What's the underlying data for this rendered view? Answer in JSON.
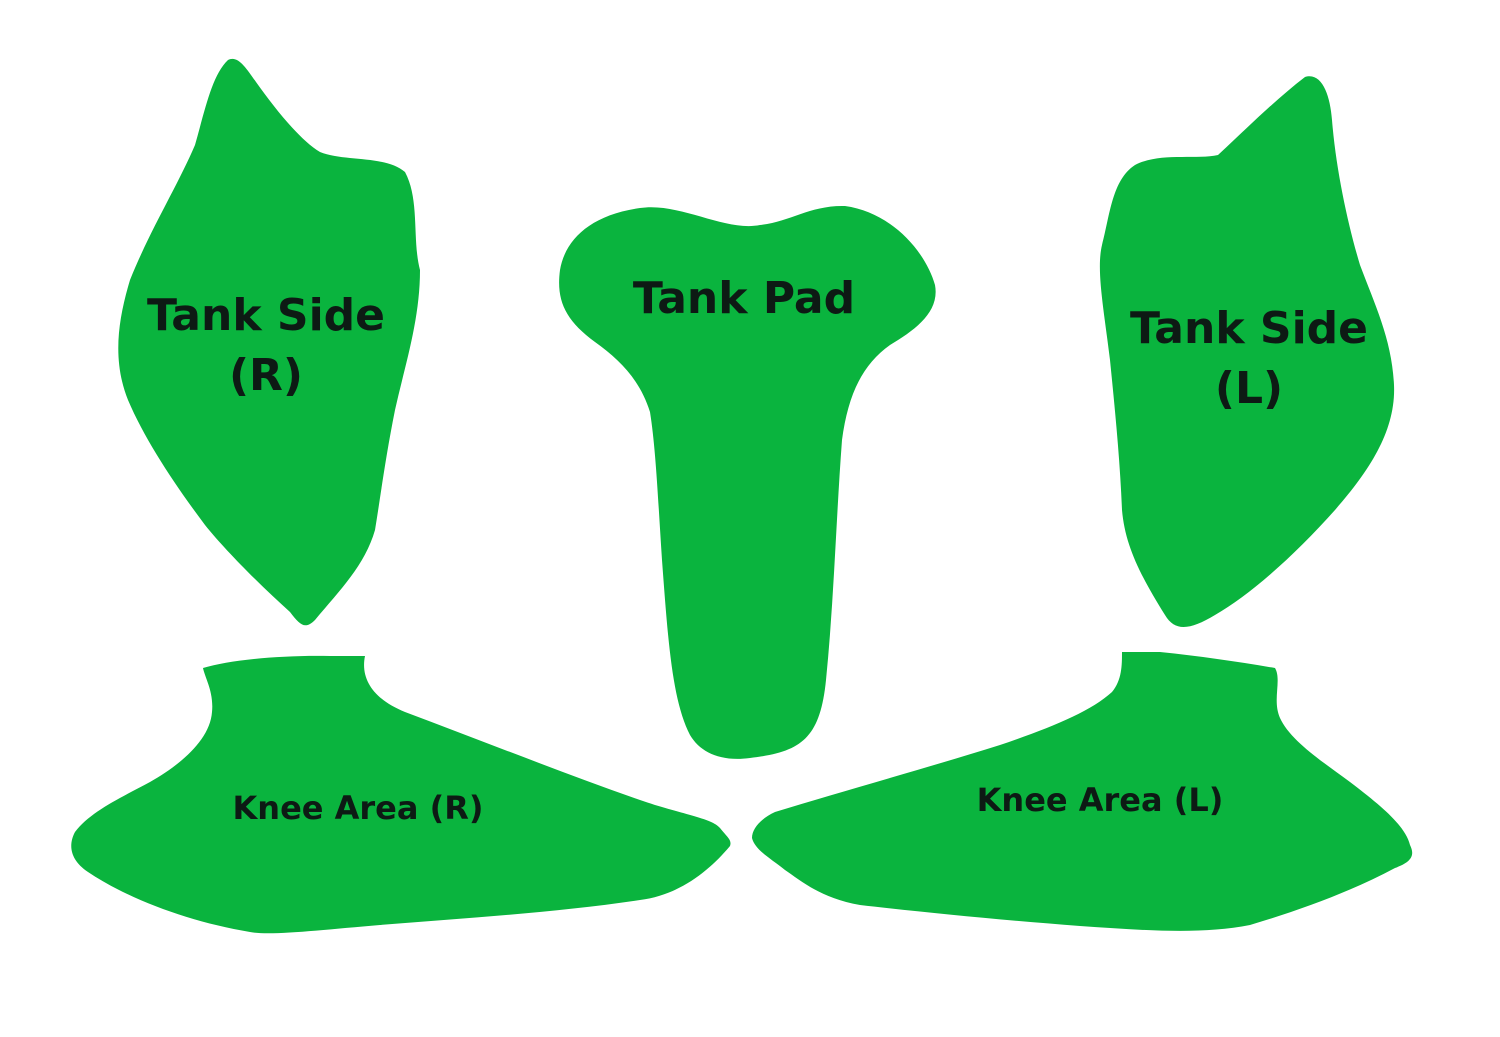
{
  "colors": {
    "background": "#ffffff",
    "piece_fill": "#0ab43e",
    "label_text": "#0d1a14"
  },
  "pieces": {
    "tank_side_right": {
      "line1": "Tank Side",
      "line2": "(R)"
    },
    "tank_pad": {
      "label": "Tank Pad"
    },
    "tank_side_left": {
      "line1": "Tank Side",
      "line2": "(L)"
    },
    "knee_area_right": {
      "label": "Knee Area (R)"
    },
    "knee_area_left": {
      "label": "Knee Area (L)"
    }
  }
}
